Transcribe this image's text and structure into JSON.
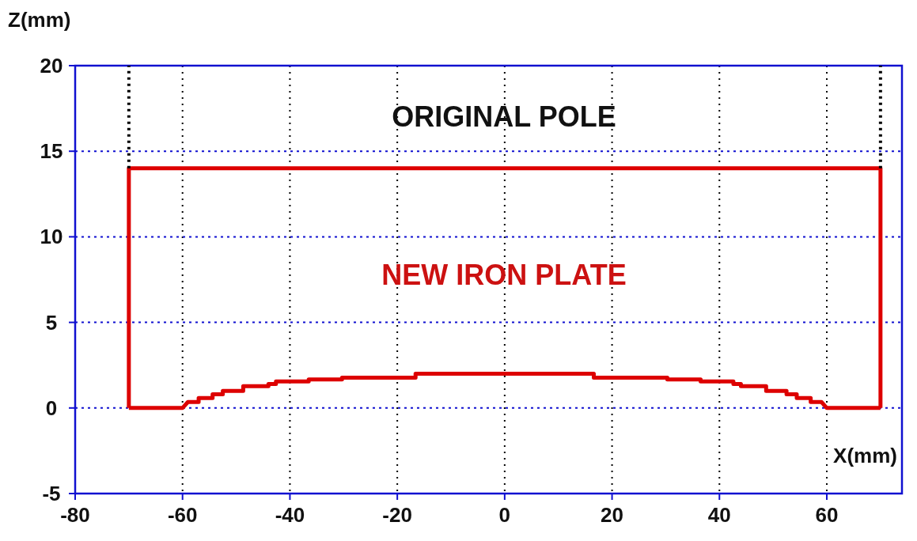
{
  "chart_data": {
    "type": "line",
    "xlabel": "X(mm)",
    "ylabel": "Z(mm)",
    "xlim": [
      -80,
      74
    ],
    "xticks": [
      -80,
      -60,
      -40,
      -20,
      0,
      20,
      40,
      60
    ],
    "ylim": [
      -5,
      20
    ],
    "yticks": [
      -5,
      0,
      5,
      10,
      15,
      20
    ],
    "grid": true,
    "marker": "none",
    "series": [
      {
        "color": "#dd0000",
        "line_style": "solid",
        "x": [
          -70,
          -70,
          70,
          70
        ],
        "values": [
          0,
          14,
          14,
          0
        ]
      },
      {
        "color": "#dd0000",
        "line_style": "solid",
        "x": [
          -70,
          -60,
          -59,
          -57,
          -57,
          -54.4,
          -54.4,
          -52.5,
          -52.5,
          -48.7,
          -48.7,
          -44,
          -44,
          -42.6,
          -42.6,
          -36.5,
          -36.5,
          -30.3,
          -30.3,
          -16.6,
          -16.6,
          16.6,
          16.6,
          30.3,
          30.3,
          36.5,
          36.5,
          42.6,
          42.6,
          44,
          44,
          48.7,
          48.7,
          52.5,
          52.5,
          54.4,
          54.4,
          57,
          57,
          59,
          60,
          70
        ],
        "values": [
          0,
          0,
          0.35,
          0.35,
          0.58,
          0.58,
          0.8,
          0.8,
          1.0,
          1.0,
          1.27,
          1.27,
          1.4,
          1.4,
          1.55,
          1.55,
          1.67,
          1.67,
          1.77,
          1.77,
          2.0,
          2.0,
          1.77,
          1.77,
          1.67,
          1.67,
          1.55,
          1.55,
          1.4,
          1.4,
          1.27,
          1.27,
          1.0,
          1.0,
          0.8,
          0.8,
          0.58,
          0.58,
          0.35,
          0.35,
          0,
          0
        ]
      },
      {
        "color": "#000000",
        "line_style": "dotted",
        "x": [
          -70,
          -70
        ],
        "values": [
          14,
          20
        ]
      },
      {
        "color": "#000000",
        "line_style": "dotted",
        "x": [
          70,
          70
        ],
        "values": [
          14,
          20
        ]
      }
    ],
    "annotations": [
      "ORIGINAL POLE",
      "NEW IRON PLATE"
    ]
  }
}
